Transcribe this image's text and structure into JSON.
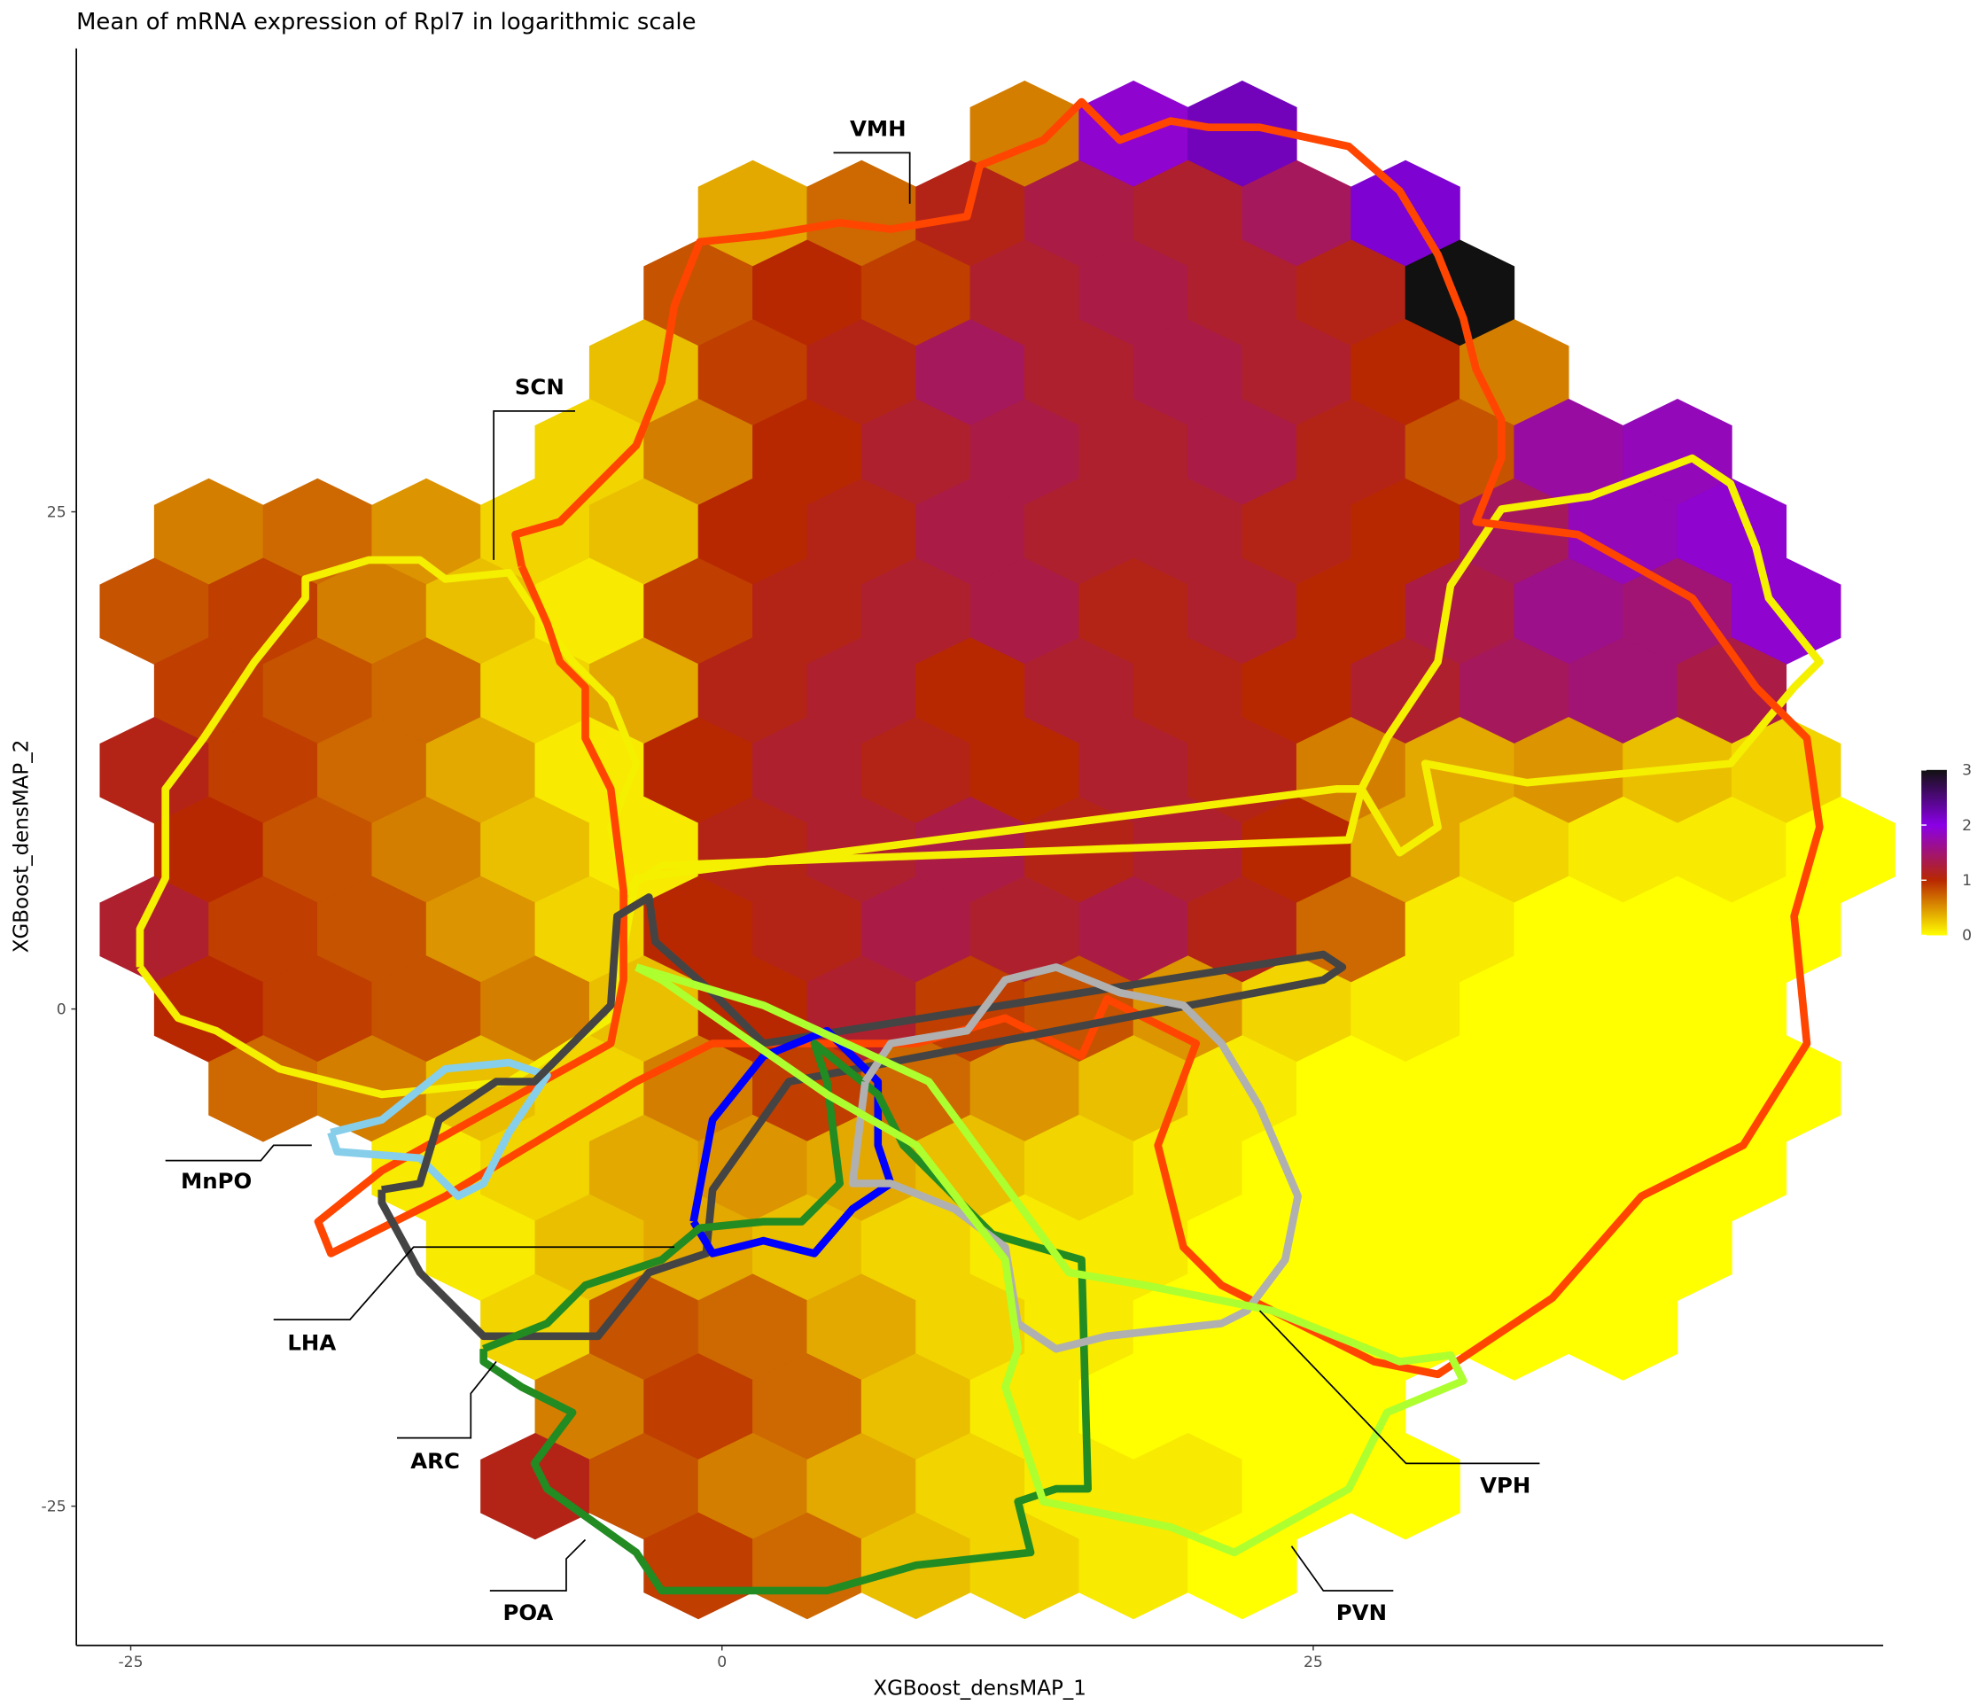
{
  "chart_data": {
    "type": "hexbin",
    "title": "Mean of mRNA expression of Rpl7 in logarithmic scale",
    "x_label": "XGBoost_densMAP_1",
    "y_label": "XGBoost_densMAP_2",
    "xlim": [
      -27.3,
      49.1
    ],
    "ylim": [
      -32,
      48.3
    ],
    "xticks": [
      -25,
      0,
      25
    ],
    "yticks": [
      -25,
      0,
      25
    ],
    "colorbar": {
      "ticks": [
        0,
        1,
        2,
        3
      ],
      "colors": [
        "#ffff00",
        "#b82800",
        "#8a00e6",
        "#111111"
      ]
    },
    "regions": [
      "VMH",
      "SCN",
      "MnPO",
      "LHA",
      "ARC",
      "POA",
      "VPH",
      "PVN"
    ],
    "hexes": [
      {
        "y": 44,
        "x": [
          12.8,
          17.4,
          22
        ],
        "values": [
          0.6,
          1.9,
          2.2
        ]
      },
      {
        "y": 40,
        "x": [
          1.3,
          5.9,
          10.5,
          15.1,
          19.7,
          24.3,
          28.9
        ],
        "values": [
          0.4,
          0.7,
          1.1,
          1.3,
          1.2,
          1.4,
          2.1
        ]
      },
      {
        "y": 36,
        "x": [
          -1,
          3.6,
          8.2,
          12.8,
          17.4,
          22,
          26.6,
          31.2
        ],
        "values": [
          0.8,
          1.0,
          0.9,
          1.2,
          1.3,
          1.2,
          1.1,
          3.0
        ]
      },
      {
        "y": 32,
        "x": [
          -3.3,
          1.3,
          5.9,
          10.5,
          15.1,
          19.7,
          24.3,
          28.9,
          33.5
        ],
        "values": [
          0.3,
          0.9,
          1.1,
          1.4,
          1.2,
          1.3,
          1.2,
          1.0,
          0.6
        ]
      },
      {
        "y": 28,
        "x": [
          -5.6,
          -1,
          3.6,
          8.2,
          12.8,
          17.4,
          22,
          26.6,
          31.2,
          35.8,
          40.4
        ],
        "values": [
          0.2,
          0.6,
          1.0,
          1.2,
          1.3,
          1.2,
          1.3,
          1.1,
          0.8,
          1.7,
          1.8
        ]
      },
      {
        "y": 24,
        "x": [
          -21.7,
          -17.1,
          -12.5,
          -7.9,
          -3.3,
          1.3,
          5.9,
          10.5,
          15.1,
          19.7,
          24.3,
          28.9,
          33.5,
          38.1,
          42.7
        ],
        "values": [
          0.6,
          0.7,
          0.5,
          0.2,
          0.3,
          1.0,
          1.1,
          1.3,
          1.2,
          1.2,
          1.1,
          1.0,
          1.4,
          1.8,
          1.9
        ]
      },
      {
        "y": 20,
        "x": [
          -24,
          -19.4,
          -14.8,
          -10.2,
          -5.6,
          -1,
          3.6,
          8.2,
          12.8,
          17.4,
          22,
          26.6,
          31.2,
          35.8,
          40.4,
          45
        ],
        "values": [
          0.8,
          0.9,
          0.6,
          0.3,
          0.1,
          0.9,
          1.1,
          1.2,
          1.3,
          1.1,
          1.2,
          1.0,
          1.3,
          1.6,
          1.5,
          1.9
        ]
      },
      {
        "y": 16,
        "x": [
          -21.7,
          -17.1,
          -12.5,
          -7.9,
          -3.3,
          1.3,
          5.9,
          10.5,
          15.1,
          19.7,
          24.3,
          28.9,
          33.5,
          38.1,
          42.7
        ],
        "values": [
          0.9,
          0.8,
          0.7,
          0.2,
          0.4,
          1.1,
          1.2,
          1.0,
          1.2,
          1.1,
          1.0,
          1.2,
          1.4,
          1.5,
          1.3
        ]
      },
      {
        "y": 12,
        "x": [
          -24,
          -19.4,
          -14.8,
          -10.2,
          -5.6,
          -1,
          3.6,
          8.2,
          12.8,
          17.4,
          22,
          26.6,
          31.2,
          35.8,
          40.4,
          45
        ],
        "values": [
          1.1,
          0.9,
          0.7,
          0.4,
          0.1,
          1.0,
          1.2,
          1.1,
          1.0,
          1.2,
          1.1,
          0.6,
          0.4,
          0.5,
          0.3,
          0.2
        ]
      },
      {
        "y": 8,
        "x": [
          -21.7,
          -17.1,
          -12.5,
          -7.9,
          -3.3,
          1.3,
          5.9,
          10.5,
          15.1,
          19.7,
          24.3,
          28.9,
          33.5,
          38.1,
          42.7,
          47.3
        ],
        "values": [
          1.0,
          0.8,
          0.6,
          0.3,
          0.1,
          1.1,
          1.2,
          1.3,
          1.1,
          1.2,
          1.0,
          0.4,
          0.2,
          0.1,
          0.1,
          0.0
        ]
      },
      {
        "y": 4,
        "x": [
          -24,
          -19.4,
          -14.8,
          -10.2,
          -5.6,
          -1,
          3.6,
          8.2,
          12.8,
          17.4,
          22,
          26.6,
          31.2,
          35.8,
          40.4,
          45
        ],
        "values": [
          1.2,
          0.9,
          0.8,
          0.5,
          0.2,
          1.0,
          1.1,
          1.3,
          1.2,
          1.3,
          1.1,
          0.7,
          0.1,
          0.0,
          0.0,
          0.0
        ]
      },
      {
        "y": 0,
        "x": [
          -21.7,
          -17.1,
          -12.5,
          -7.9,
          -3.3,
          1.3,
          5.9,
          10.5,
          15.1,
          19.7,
          24.3,
          28.9,
          33.5,
          38.1,
          42.7
        ],
        "values": [
          1.0,
          0.9,
          0.8,
          0.6,
          0.3,
          1.0,
          1.2,
          0.9,
          0.8,
          0.5,
          0.2,
          0.1,
          0.0,
          0.0,
          0.0
        ]
      },
      {
        "y": -4,
        "x": [
          -19.4,
          -14.8,
          -10.2,
          -5.6,
          -1,
          3.6,
          8.2,
          12.8,
          17.4,
          22,
          26.6,
          31.2,
          35.8,
          40.4,
          45
        ],
        "values": [
          0.7,
          0.6,
          0.3,
          0.2,
          0.6,
          0.9,
          0.7,
          0.5,
          0.3,
          0.1,
          0.0,
          0.0,
          0.0,
          0.0,
          0.0
        ]
      },
      {
        "y": -8,
        "x": [
          -12.5,
          -7.9,
          -3.3,
          1.3,
          5.9,
          10.5,
          15.1,
          19.7,
          24.3,
          28.9,
          33.5,
          38.1,
          42.7
        ],
        "values": [
          0.1,
          0.2,
          0.4,
          0.5,
          0.4,
          0.3,
          0.2,
          0.1,
          0.0,
          0.0,
          0.0,
          0.0,
          0.0
        ]
      },
      {
        "y": -12,
        "x": [
          -10.2,
          -5.6,
          -1,
          3.6,
          8.2,
          12.8,
          17.4,
          22,
          26.6,
          31.2,
          35.8,
          40.4
        ],
        "values": [
          0.1,
          0.3,
          0.4,
          0.3,
          0.2,
          0.1,
          0.1,
          0.0,
          0.0,
          0.0,
          0.0,
          0.0
        ]
      },
      {
        "y": -16,
        "x": [
          -7.9,
          -3.3,
          1.3,
          5.9,
          10.5,
          15.1,
          19.7,
          24.3,
          28.9,
          33.5,
          38.1
        ],
        "values": [
          0.2,
          0.8,
          0.7,
          0.4,
          0.2,
          0.1,
          0.0,
          0.0,
          0.0,
          0.0,
          0.0
        ]
      },
      {
        "y": -20,
        "x": [
          -5.6,
          -1,
          3.6,
          8.2,
          12.8,
          17.4,
          22,
          26.6
        ],
        "values": [
          0.6,
          0.9,
          0.7,
          0.3,
          0.1,
          0.0,
          0.0,
          0.0
        ]
      },
      {
        "y": -24,
        "x": [
          -7.9,
          -3.3,
          1.3,
          5.9,
          10.5,
          15.1,
          19.7,
          24.3,
          28.9
        ],
        "values": [
          1.1,
          0.8,
          0.6,
          0.4,
          0.2,
          0.1,
          0.1,
          0.0,
          0.0
        ]
      },
      {
        "y": -28,
        "x": [
          -1,
          3.6,
          8.2,
          12.8,
          17.4,
          22
        ],
        "values": [
          0.9,
          0.7,
          0.3,
          0.2,
          0.1,
          0.0
        ]
      }
    ]
  }
}
